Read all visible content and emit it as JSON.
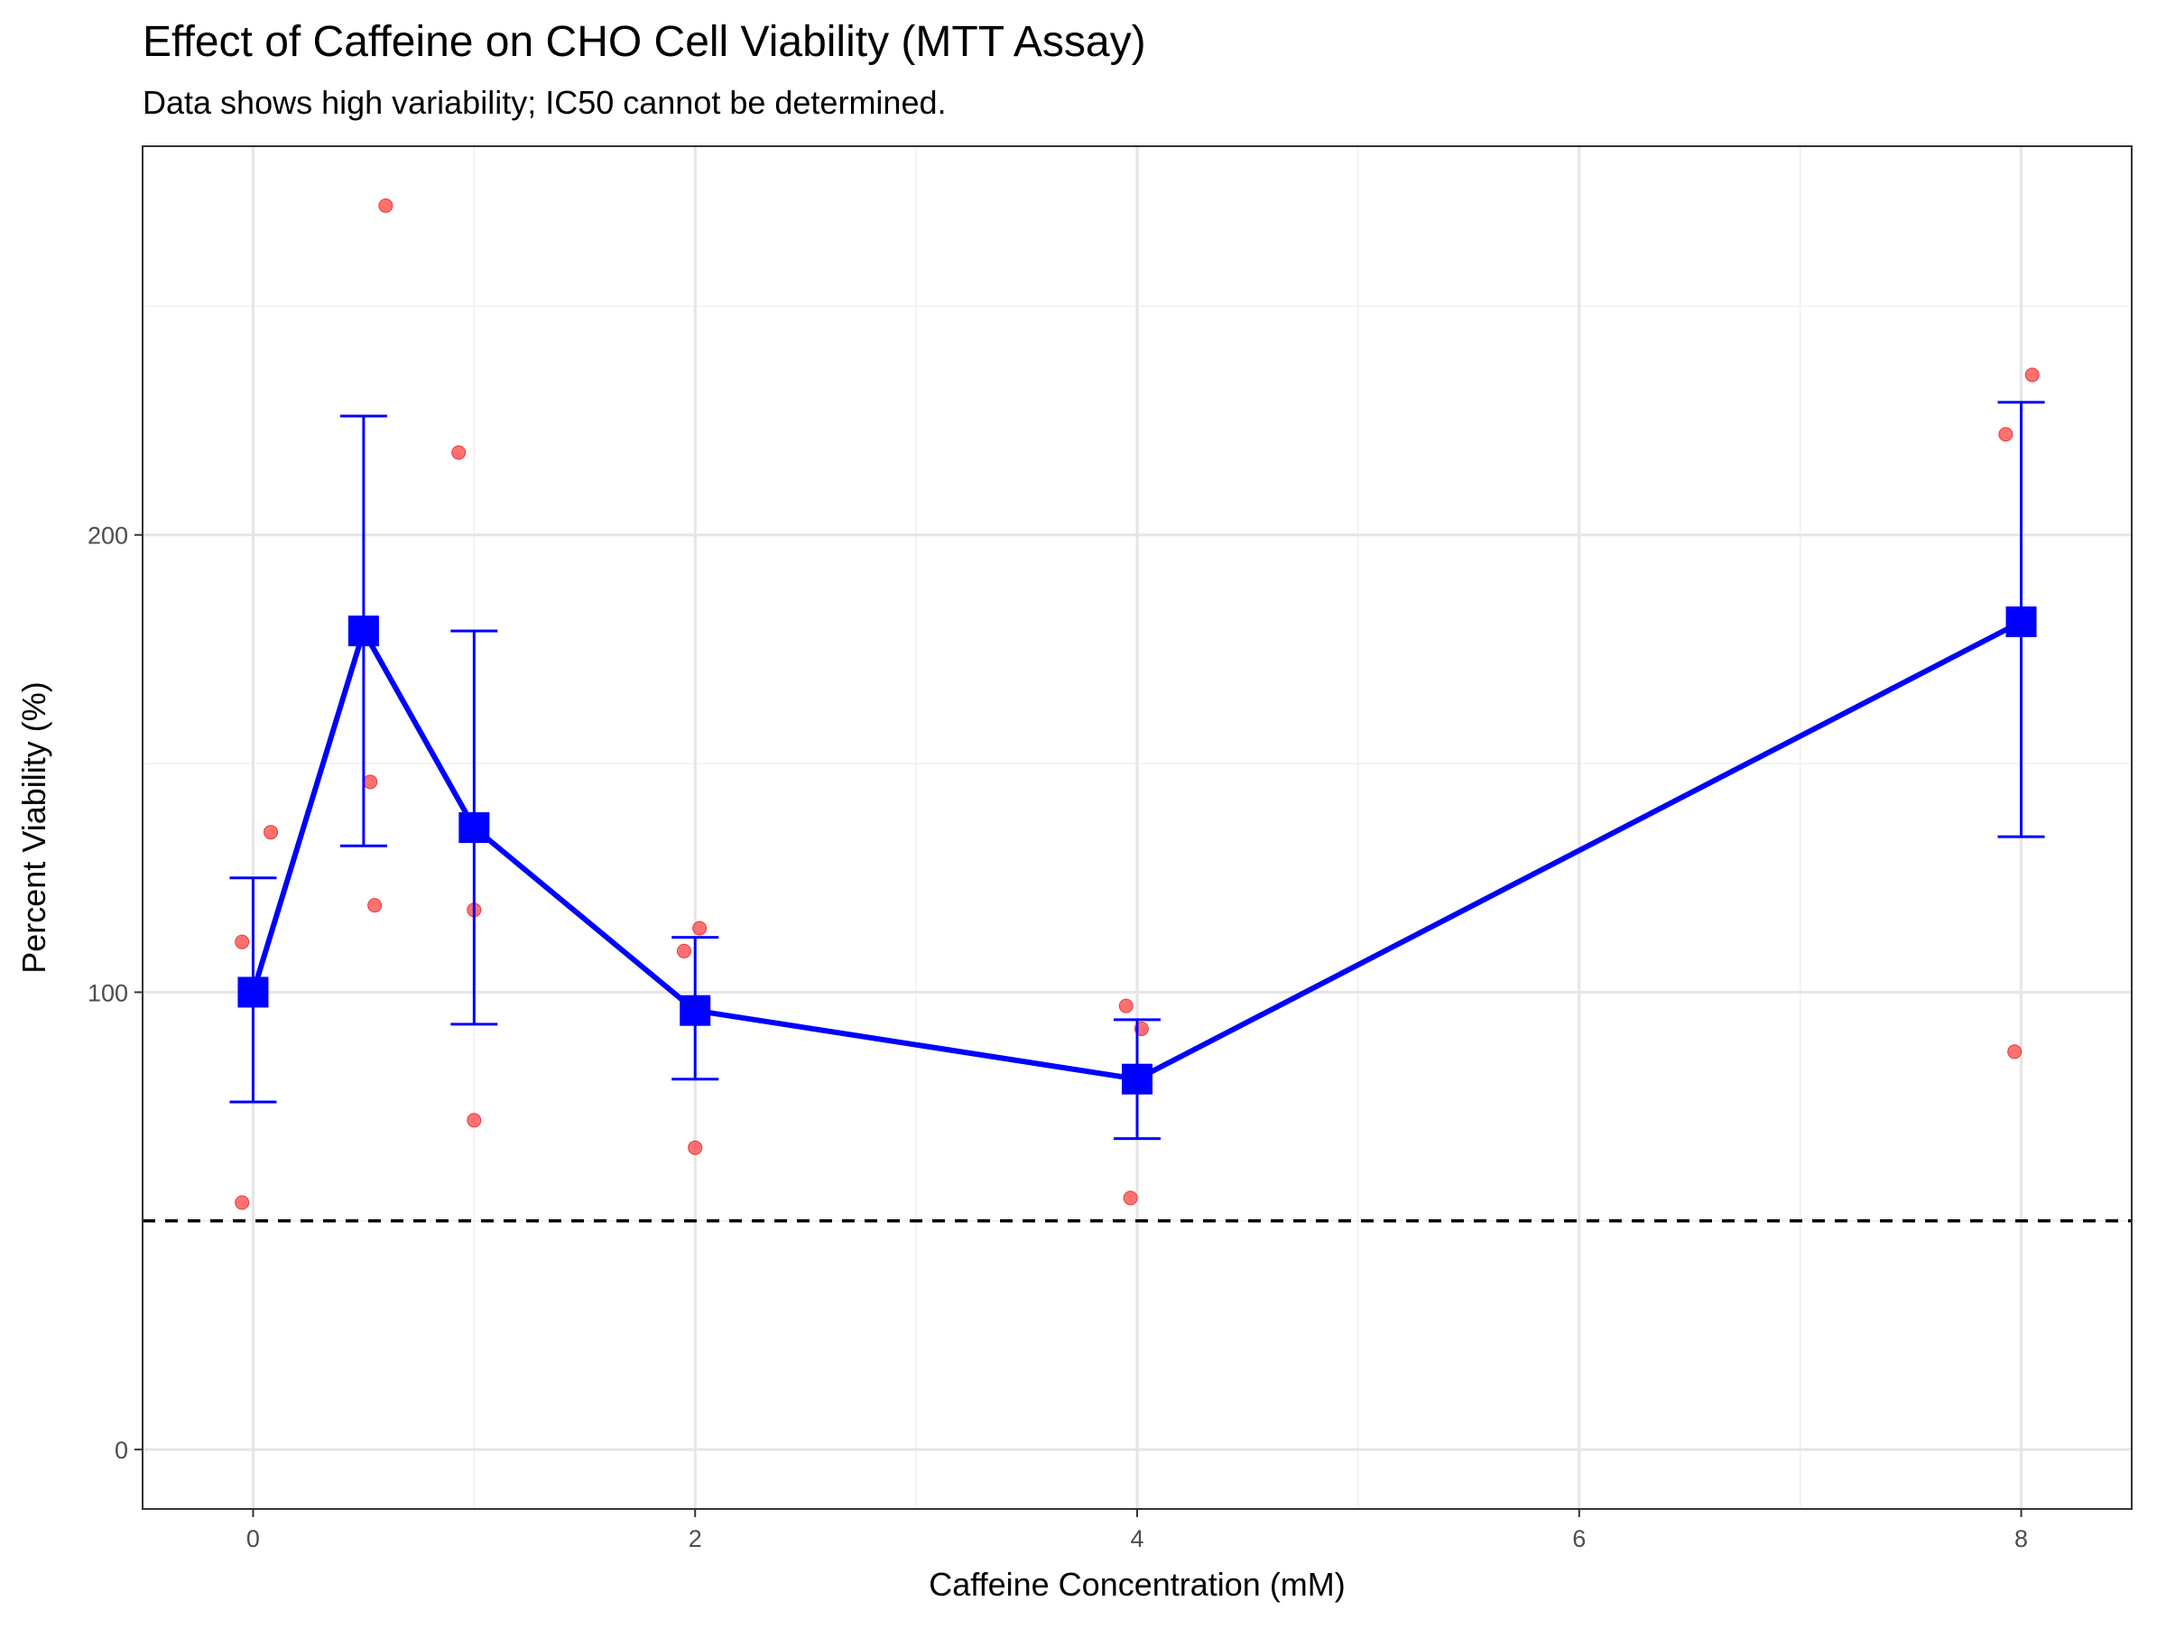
{
  "chart_data": {
    "type": "scatter",
    "title": "Effect of Caffeine on CHO Cell Viability (MTT Assay)",
    "subtitle": "Data shows high variability; IC50 cannot be determined.",
    "xlabel": "Caffeine Concentration (mM)",
    "ylabel": "Percent Viability (%)",
    "xlim": [
      -0.5,
      8.5
    ],
    "ylim": [
      -13,
      285
    ],
    "x_ticks": [
      0,
      2,
      4,
      6,
      8
    ],
    "x_minor_ticks": [
      1,
      3,
      5,
      7
    ],
    "y_ticks": [
      0,
      100,
      200
    ],
    "y_minor_ticks": [
      50,
      150,
      250
    ],
    "grid": true,
    "reference_line": {
      "y": 50,
      "style": "dashed",
      "color": "#000000"
    },
    "series": [
      {
        "kind": "replicates",
        "color": "#ff4d4d",
        "points": [
          {
            "x": -0.05,
            "y": 54
          },
          {
            "x": -0.05,
            "y": 111
          },
          {
            "x": 0.08,
            "y": 135
          },
          {
            "x": 0.53,
            "y": 146
          },
          {
            "x": 0.55,
            "y": 119
          },
          {
            "x": 0.6,
            "y": 272
          },
          {
            "x": 0.93,
            "y": 218
          },
          {
            "x": 1.0,
            "y": 118
          },
          {
            "x": 1.0,
            "y": 72
          },
          {
            "x": 1.95,
            "y": 109
          },
          {
            "x": 2.02,
            "y": 114
          },
          {
            "x": 2.0,
            "y": 66
          },
          {
            "x": 3.95,
            "y": 97
          },
          {
            "x": 4.02,
            "y": 92
          },
          {
            "x": 3.97,
            "y": 55
          },
          {
            "x": 7.93,
            "y": 222
          },
          {
            "x": 8.05,
            "y": 235
          },
          {
            "x": 7.97,
            "y": 87
          }
        ]
      },
      {
        "kind": "mean",
        "color": "#0000ff",
        "points": [
          {
            "x": 0,
            "y": 100,
            "error_low": 76,
            "error_high": 125
          },
          {
            "x": 0.5,
            "y": 179,
            "error_low": 132,
            "error_high": 226
          },
          {
            "x": 1,
            "y": 136,
            "error_low": 93,
            "error_high": 179
          },
          {
            "x": 2,
            "y": 96,
            "error_low": 81,
            "error_high": 112
          },
          {
            "x": 4,
            "y": 81,
            "error_low": 68,
            "error_high": 94
          },
          {
            "x": 8,
            "y": 181,
            "error_low": 134,
            "error_high": 229
          }
        ]
      }
    ]
  }
}
